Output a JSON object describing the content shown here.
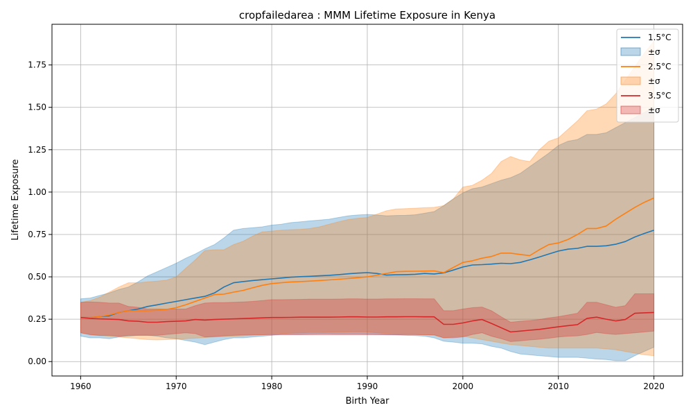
{
  "chart_data": {
    "type": "area",
    "title": "cropfailedarea : MMM Lifetime Exposure in Kenya",
    "xlabel": "Birth Year",
    "ylabel": "Lifetime Exposure",
    "xlim": [
      1957,
      2023
    ],
    "ylim": [
      -0.085,
      1.99
    ],
    "xticks": [
      1960,
      1970,
      1980,
      1990,
      2000,
      2010,
      2020
    ],
    "yticks": [
      0.0,
      0.25,
      0.5,
      0.75,
      1.0,
      1.25,
      1.5,
      1.75
    ],
    "ytick_labels": [
      "0.00",
      "0.25",
      "0.50",
      "0.75",
      "1.00",
      "1.25",
      "1.50",
      "1.75"
    ],
    "grid": true,
    "legend_position": "top-right",
    "x": [
      1960,
      1961,
      1962,
      1963,
      1964,
      1965,
      1966,
      1967,
      1968,
      1969,
      1970,
      1971,
      1972,
      1973,
      1974,
      1975,
      1976,
      1977,
      1978,
      1979,
      1980,
      1981,
      1982,
      1983,
      1984,
      1985,
      1986,
      1987,
      1988,
      1989,
      1990,
      1991,
      1992,
      1993,
      1994,
      1995,
      1996,
      1997,
      1998,
      1999,
      2000,
      2001,
      2002,
      2003,
      2004,
      2005,
      2006,
      2007,
      2008,
      2009,
      2010,
      2011,
      2012,
      2013,
      2014,
      2015,
      2016,
      2017,
      2018,
      2019,
      2020
    ],
    "series": [
      {
        "name": "1.5°C",
        "band_label": "±σ",
        "color": "#1f77b4",
        "mean": [
          0.26,
          0.26,
          0.265,
          0.27,
          0.29,
          0.3,
          0.31,
          0.325,
          0.335,
          0.345,
          0.355,
          0.365,
          0.375,
          0.385,
          0.405,
          0.44,
          0.465,
          0.472,
          0.478,
          0.483,
          0.488,
          0.493,
          0.498,
          0.501,
          0.503,
          0.506,
          0.509,
          0.513,
          0.518,
          0.522,
          0.525,
          0.52,
          0.51,
          0.512,
          0.513,
          0.515,
          0.52,
          0.517,
          0.523,
          0.54,
          0.558,
          0.57,
          0.572,
          0.575,
          0.58,
          0.578,
          0.585,
          0.6,
          0.617,
          0.635,
          0.652,
          0.663,
          0.668,
          0.68,
          0.68,
          0.683,
          0.692,
          0.708,
          0.735,
          0.756,
          0.775
        ],
        "upper": [
          0.37,
          0.375,
          0.39,
          0.405,
          0.425,
          0.44,
          0.47,
          0.505,
          0.53,
          0.555,
          0.58,
          0.61,
          0.635,
          0.665,
          0.69,
          0.73,
          0.775,
          0.785,
          0.79,
          0.795,
          0.805,
          0.81,
          0.82,
          0.825,
          0.83,
          0.835,
          0.84,
          0.85,
          0.86,
          0.865,
          0.868,
          0.865,
          0.86,
          0.862,
          0.863,
          0.866,
          0.875,
          0.885,
          0.92,
          0.96,
          0.995,
          1.02,
          1.03,
          1.05,
          1.07,
          1.085,
          1.11,
          1.15,
          1.19,
          1.23,
          1.275,
          1.3,
          1.31,
          1.34,
          1.34,
          1.35,
          1.38,
          1.41,
          1.44,
          1.47,
          1.5
        ],
        "lower": [
          0.15,
          0.14,
          0.14,
          0.135,
          0.145,
          0.15,
          0.155,
          0.155,
          0.15,
          0.14,
          0.135,
          0.125,
          0.115,
          0.1,
          0.115,
          0.13,
          0.14,
          0.14,
          0.145,
          0.15,
          0.155,
          0.16,
          0.16,
          0.16,
          0.162,
          0.163,
          0.163,
          0.162,
          0.162,
          0.162,
          0.161,
          0.16,
          0.158,
          0.157,
          0.155,
          0.153,
          0.15,
          0.14,
          0.12,
          0.115,
          0.108,
          0.108,
          0.105,
          0.09,
          0.08,
          0.06,
          0.045,
          0.04,
          0.035,
          0.03,
          0.025,
          0.025,
          0.025,
          0.02,
          0.015,
          0.012,
          0.005,
          0.005,
          0.035,
          0.06,
          0.085
        ]
      },
      {
        "name": "2.5°C",
        "band_label": "±σ",
        "color": "#ff7f0e",
        "mean": [
          0.26,
          0.26,
          0.265,
          0.275,
          0.29,
          0.3,
          0.3,
          0.3,
          0.303,
          0.308,
          0.318,
          0.335,
          0.355,
          0.375,
          0.395,
          0.398,
          0.41,
          0.42,
          0.435,
          0.45,
          0.46,
          0.465,
          0.47,
          0.472,
          0.475,
          0.478,
          0.482,
          0.486,
          0.49,
          0.495,
          0.5,
          0.51,
          0.52,
          0.53,
          0.532,
          0.533,
          0.534,
          0.535,
          0.525,
          0.555,
          0.585,
          0.595,
          0.61,
          0.62,
          0.64,
          0.64,
          0.632,
          0.625,
          0.66,
          0.69,
          0.7,
          0.72,
          0.75,
          0.785,
          0.785,
          0.8,
          0.84,
          0.875,
          0.91,
          0.94,
          0.965
        ],
        "upper": [
          0.35,
          0.36,
          0.38,
          0.41,
          0.44,
          0.465,
          0.465,
          0.47,
          0.475,
          0.48,
          0.5,
          0.55,
          0.6,
          0.655,
          0.66,
          0.66,
          0.69,
          0.71,
          0.74,
          0.765,
          0.77,
          0.775,
          0.778,
          0.78,
          0.785,
          0.795,
          0.81,
          0.825,
          0.838,
          0.845,
          0.85,
          0.87,
          0.89,
          0.9,
          0.902,
          0.905,
          0.908,
          0.91,
          0.92,
          0.96,
          1.03,
          1.04,
          1.07,
          1.11,
          1.18,
          1.21,
          1.19,
          1.18,
          1.25,
          1.3,
          1.32,
          1.37,
          1.42,
          1.48,
          1.49,
          1.52,
          1.58,
          1.66,
          1.74,
          1.82,
          1.89
        ],
        "lower": [
          0.17,
          0.16,
          0.155,
          0.15,
          0.145,
          0.14,
          0.135,
          0.13,
          0.128,
          0.13,
          0.132,
          0.135,
          0.138,
          0.142,
          0.145,
          0.148,
          0.15,
          0.152,
          0.155,
          0.158,
          0.162,
          0.165,
          0.168,
          0.17,
          0.172,
          0.172,
          0.173,
          0.174,
          0.175,
          0.176,
          0.175,
          0.17,
          0.165,
          0.162,
          0.16,
          0.16,
          0.158,
          0.155,
          0.14,
          0.145,
          0.15,
          0.14,
          0.13,
          0.12,
          0.11,
          0.1,
          0.095,
          0.09,
          0.085,
          0.08,
          0.08,
          0.08,
          0.08,
          0.08,
          0.08,
          0.075,
          0.07,
          0.06,
          0.05,
          0.04,
          0.035
        ]
      },
      {
        "name": "3.5°C",
        "band_label": "±σ",
        "color": "#d62728",
        "mean": [
          0.26,
          0.255,
          0.252,
          0.25,
          0.248,
          0.24,
          0.238,
          0.232,
          0.232,
          0.236,
          0.238,
          0.24,
          0.248,
          0.245,
          0.248,
          0.25,
          0.252,
          0.254,
          0.256,
          0.258,
          0.26,
          0.26,
          0.261,
          0.262,
          0.262,
          0.262,
          0.262,
          0.263,
          0.264,
          0.264,
          0.263,
          0.263,
          0.264,
          0.264,
          0.265,
          0.265,
          0.264,
          0.264,
          0.22,
          0.22,
          0.228,
          0.24,
          0.248,
          0.225,
          0.2,
          0.175,
          0.18,
          0.185,
          0.19,
          0.198,
          0.205,
          0.212,
          0.218,
          0.255,
          0.262,
          0.25,
          0.24,
          0.248,
          0.285,
          0.288,
          0.29
        ],
        "upper": [
          0.35,
          0.352,
          0.35,
          0.345,
          0.345,
          0.325,
          0.32,
          0.31,
          0.31,
          0.31,
          0.31,
          0.31,
          0.33,
          0.345,
          0.348,
          0.348,
          0.35,
          0.352,
          0.355,
          0.36,
          0.365,
          0.365,
          0.366,
          0.367,
          0.368,
          0.368,
          0.368,
          0.369,
          0.37,
          0.37,
          0.369,
          0.369,
          0.37,
          0.37,
          0.371,
          0.371,
          0.37,
          0.37,
          0.3,
          0.3,
          0.31,
          0.318,
          0.322,
          0.3,
          0.265,
          0.232,
          0.238,
          0.242,
          0.248,
          0.258,
          0.265,
          0.275,
          0.285,
          0.35,
          0.35,
          0.335,
          0.32,
          0.33,
          0.4,
          0.4,
          0.4
        ],
        "lower": [
          0.17,
          0.158,
          0.154,
          0.155,
          0.15,
          0.155,
          0.155,
          0.155,
          0.155,
          0.16,
          0.165,
          0.17,
          0.165,
          0.145,
          0.148,
          0.152,
          0.155,
          0.157,
          0.158,
          0.158,
          0.158,
          0.158,
          0.158,
          0.158,
          0.158,
          0.158,
          0.158,
          0.158,
          0.158,
          0.158,
          0.158,
          0.158,
          0.158,
          0.158,
          0.159,
          0.159,
          0.158,
          0.158,
          0.14,
          0.14,
          0.145,
          0.16,
          0.17,
          0.15,
          0.135,
          0.118,
          0.122,
          0.128,
          0.132,
          0.138,
          0.145,
          0.15,
          0.152,
          0.16,
          0.172,
          0.165,
          0.16,
          0.165,
          0.17,
          0.175,
          0.18
        ]
      }
    ]
  }
}
